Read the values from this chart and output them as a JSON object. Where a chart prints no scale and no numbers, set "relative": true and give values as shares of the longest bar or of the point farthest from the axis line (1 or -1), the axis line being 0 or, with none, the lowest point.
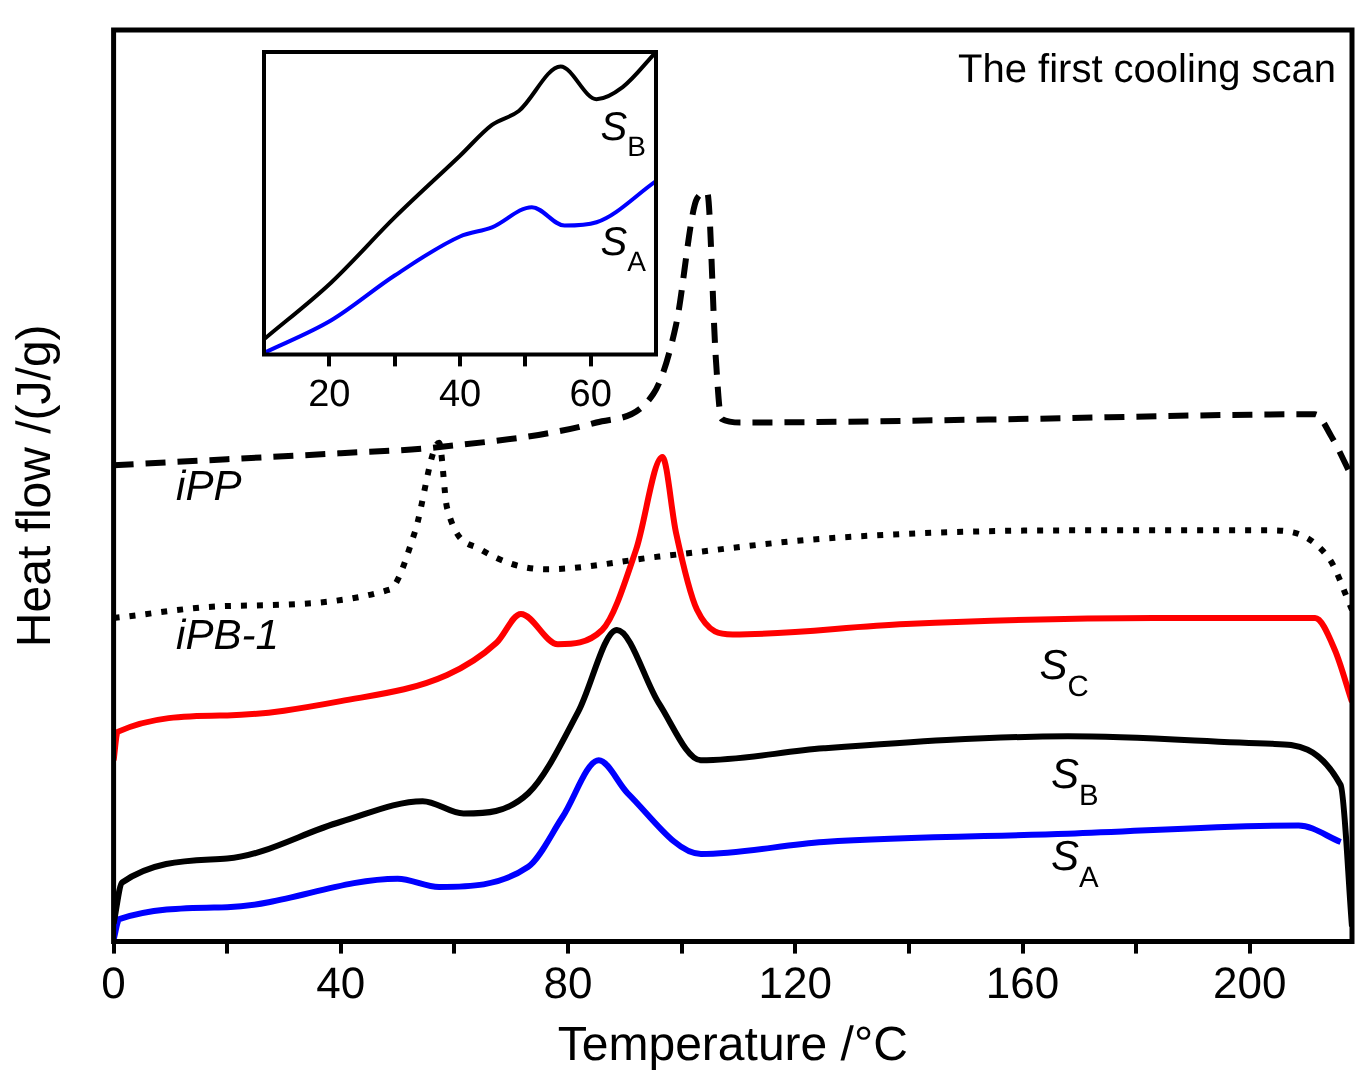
{
  "chart_data": [
    {
      "type": "line",
      "title": "The first cooling scan",
      "xlabel": "Temperature /°C",
      "ylabel": "Heat flow /(J/g)",
      "relative": true,
      "xlim": [
        0,
        218
      ],
      "xticks": [
        0,
        {
          "value": 20,
          "label": null
        },
        40,
        {
          "value": 60,
          "label": null
        },
        80,
        {
          "value": 100,
          "label": null
        },
        120,
        {
          "value": 140,
          "label": null
        },
        160,
        {
          "value": 180,
          "label": null
        },
        200
      ],
      "series": [
        {
          "name": "iPP",
          "color": "#000000",
          "line_style": "dashed",
          "x": [
            0,
            20,
            40,
            57,
            85,
            95,
            99,
            102.7,
            104.5,
            106,
            107,
            110.6,
            154,
            211.5,
            214.4,
            218
          ],
          "values": [
            0.636,
            0.644,
            0.652,
            0.66,
            0.693,
            0.731,
            0.823,
            0.992,
            1.0,
            0.78,
            0.698,
            0.693,
            0.697,
            0.704,
            0.674,
            0.62
          ]
        },
        {
          "name": "iPB-1",
          "color": "#000000",
          "line_style": "dotted",
          "x": [
            0,
            20,
            48.6,
            53,
            57.3,
            58.7,
            64.5,
            76,
            96,
            125,
            168,
            204,
            214,
            218
          ],
          "values": [
            0.432,
            0.448,
            0.47,
            0.546,
            0.666,
            0.579,
            0.524,
            0.497,
            0.514,
            0.538,
            0.549,
            0.549,
            0.511,
            0.443
          ]
        },
        {
          "name": "S$_{C}$",
          "color": "#ff0000",
          "line_style": "solid",
          "x": [
            0,
            0.7,
            20,
            40,
            58.7,
            67.4,
            71.7,
            78.2,
            86,
            92,
            96.6,
            99,
            102.7,
            109,
            139.5,
            183,
            211.5,
            215,
            218
          ],
          "values": [
            0.242,
            0.28,
            0.302,
            0.321,
            0.356,
            0.399,
            0.4375,
            0.397,
            0.416,
            0.524,
            0.647,
            0.546,
            0.443,
            0.41,
            0.424,
            0.432,
            0.432,
            0.389,
            0.32
          ]
        },
        {
          "name": "S$_{B}$",
          "color": "#000000",
          "line_style": "solid",
          "x": [
            0,
            1.5,
            20,
            40,
            54.4,
            61.6,
            73,
            81.8,
            88.6,
            96,
            103.4,
            125,
            168,
            204,
            216,
            218
          ],
          "values": [
            0.024,
            0.079,
            0.111,
            0.16,
            0.1875,
            0.171,
            0.198,
            0.307,
            0.416,
            0.318,
            0.242,
            0.258,
            0.274,
            0.264,
            0.209,
            0.02
          ]
        },
        {
          "name": "S$_{A}$",
          "color": "#0000ff",
          "line_style": "solid",
          "x": [
            0,
            1,
            20,
            50,
            57.3,
            73,
            79,
            85.4,
            90.5,
            103.4,
            125,
            168,
            208.6,
            216
          ],
          "values": [
            0.003,
            0.03,
            0.046,
            0.084,
            0.073,
            0.1,
            0.166,
            0.242,
            0.198,
            0.117,
            0.133,
            0.144,
            0.155,
            0.133
          ]
        }
      ]
    },
    {
      "type": "line",
      "relative": true,
      "xlim": [
        10,
        70
      ],
      "xticks": [
        20,
        {
          "value": 30,
          "label": null
        },
        40,
        {
          "value": 50,
          "label": null
        },
        60
      ],
      "series": [
        {
          "name": "S$_{B}$",
          "color": "#000000",
          "line_style": "solid",
          "x": [
            10,
            20.3,
            30,
            40,
            44.9,
            49,
            55.4,
            60.9,
            64.9,
            70
          ],
          "values": [
            0.05,
            0.238,
            0.453,
            0.657,
            0.759,
            0.805,
            0.952,
            0.844,
            0.884,
            1.0
          ]
        },
        {
          "name": "S$_{A}$",
          "color": "#0000ff",
          "line_style": "solid",
          "x": [
            10,
            20.3,
            30,
            40,
            44.9,
            51,
            56,
            60.9,
            70
          ],
          "values": [
            0.005,
            0.113,
            0.261,
            0.39,
            0.42,
            0.487,
            0.426,
            0.437,
            0.573
          ]
        }
      ]
    }
  ]
}
